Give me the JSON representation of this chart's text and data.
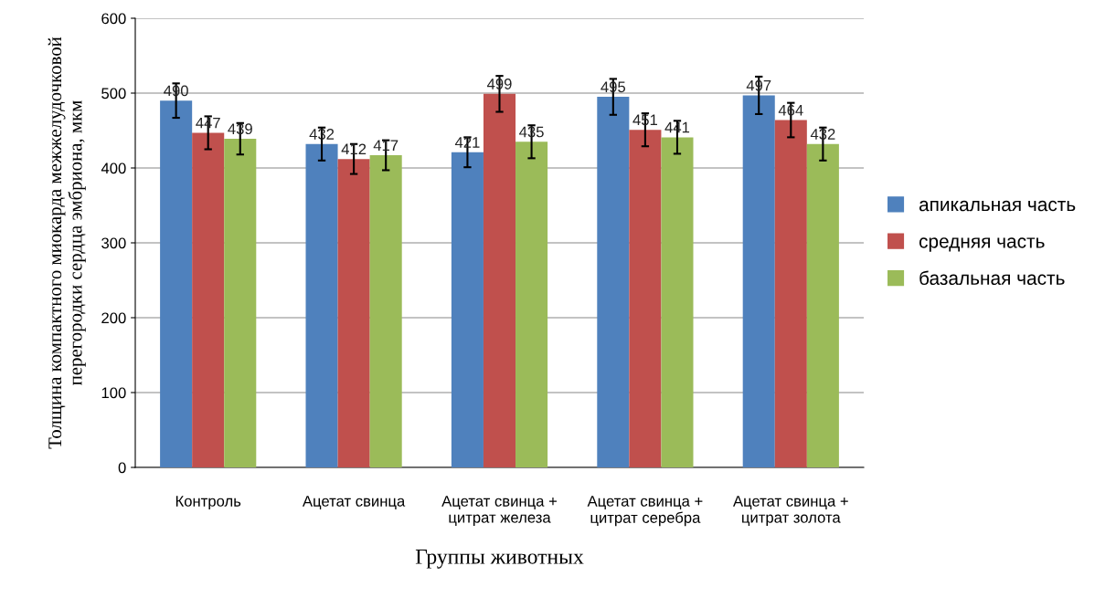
{
  "chart_data": {
    "type": "bar",
    "xlabel": "Группы животных",
    "ylabel": "Толщина компактного миокарда межжелудочковой\nперегородки сердца эмбриона, мкм",
    "categories": [
      "Контроль",
      "Ацетат свинца",
      "Ацетат свинца +\nцитрат железа",
      "Ацетат свинца +\nцитрат серебра",
      "Ацетат свинца +\nцитрат золота"
    ],
    "series": [
      {
        "name": "апикальная часть",
        "color": "#4f81bd",
        "values": [
          490,
          432,
          421,
          495,
          497
        ],
        "errors": [
          23,
          22,
          20,
          24,
          25
        ]
      },
      {
        "name": "средняя часть",
        "color": "#c0504d",
        "values": [
          447,
          412,
          499,
          451,
          464
        ],
        "errors": [
          22,
          20,
          24,
          22,
          23
        ]
      },
      {
        "name": "базальная часть",
        "color": "#9bbb59",
        "values": [
          439,
          417,
          435,
          441,
          432
        ],
        "errors": [
          21,
          20,
          22,
          22,
          22
        ]
      }
    ],
    "ylim": [
      0,
      600
    ],
    "yticks": [
      0,
      100,
      200,
      300,
      400,
      500,
      600
    ],
    "grid": "y",
    "legend": "right",
    "data_labels": true
  }
}
